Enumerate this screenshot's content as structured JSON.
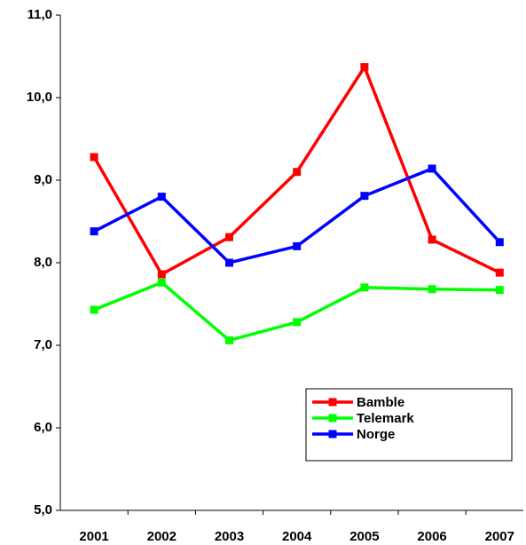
{
  "chart_data": {
    "type": "line",
    "categories": [
      "2001",
      "2002",
      "2003",
      "2004",
      "2005",
      "2006",
      "2007"
    ],
    "series": [
      {
        "name": "Bamble",
        "color": "#ff0000",
        "values": [
          9.28,
          7.86,
          8.31,
          9.1,
          10.37,
          8.28,
          7.88
        ]
      },
      {
        "name": "Telemark",
        "color": "#00ff00",
        "values": [
          7.43,
          7.76,
          7.06,
          7.28,
          7.7,
          7.68,
          7.67
        ]
      },
      {
        "name": "Norge",
        "color": "#0000ff",
        "values": [
          8.38,
          8.8,
          8.0,
          8.2,
          8.81,
          9.14,
          8.25
        ]
      }
    ],
    "ylim": [
      5,
      11
    ],
    "yticks": [
      {
        "value": 5,
        "label": "5,0"
      },
      {
        "value": 6,
        "label": "6,0"
      },
      {
        "value": 7,
        "label": "7,0"
      },
      {
        "value": 8,
        "label": "8,0"
      },
      {
        "value": 9,
        "label": "9,0"
      },
      {
        "value": 10,
        "label": "10,0"
      },
      {
        "value": 11,
        "label": "11,0"
      }
    ],
    "grid": false,
    "legend": "lower right"
  }
}
